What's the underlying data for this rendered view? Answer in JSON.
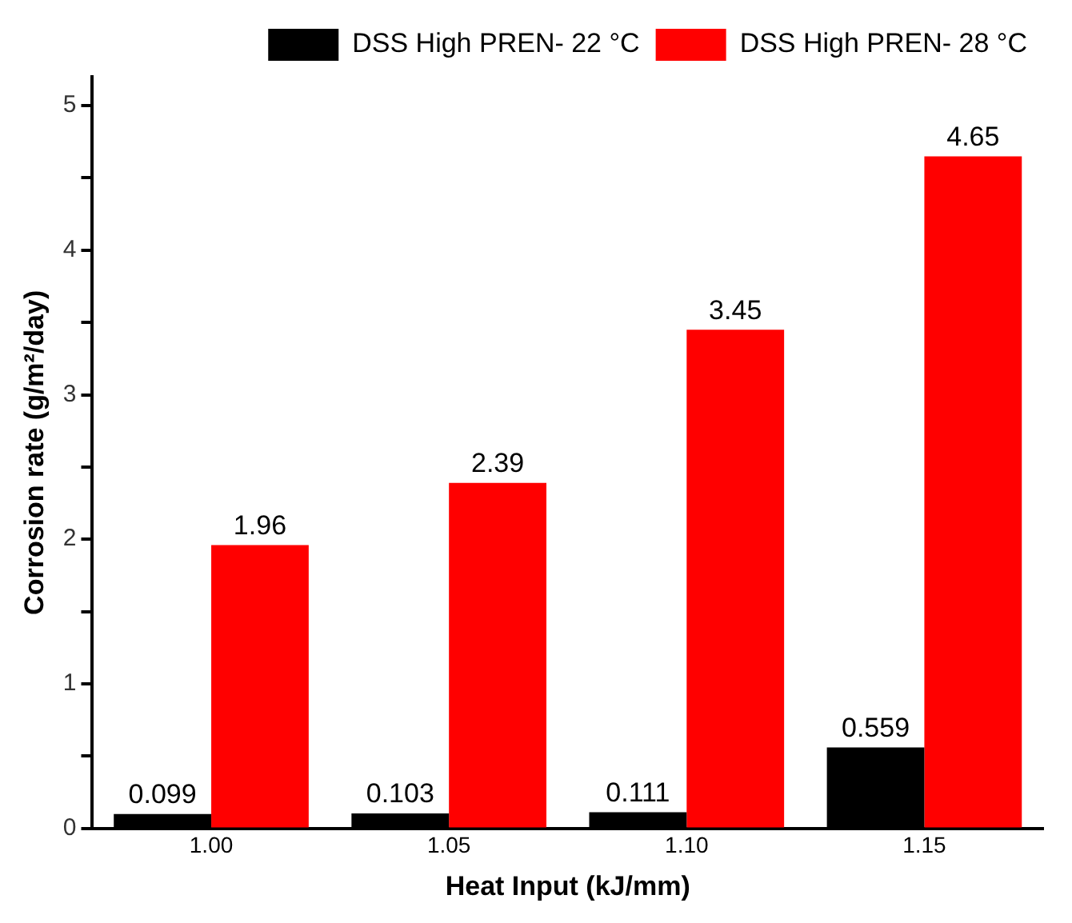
{
  "chart_data": {
    "type": "bar",
    "xlabel": "Heat Input (kJ/mm)",
    "ylabel": "Corrosion rate (g/m²/day)",
    "categories": [
      "1.00",
      "1.05",
      "1.10",
      "1.15"
    ],
    "series": [
      {
        "name": "DSS High PREN- 22 °C",
        "color": "#000000",
        "values": [
          0.099,
          0.103,
          0.111,
          0.559
        ]
      },
      {
        "name": "DSS High PREN- 28 °C",
        "color": "#ff0000",
        "values": [
          1.96,
          2.39,
          3.45,
          4.65
        ]
      }
    ],
    "ylim": [
      0,
      5.2
    ],
    "yticks": [
      0,
      {
        "value": 0.5,
        "label": null
      },
      1,
      {
        "value": 1.5,
        "label": null
      },
      2,
      {
        "value": 2.5,
        "label": null
      },
      3,
      {
        "value": 3.5,
        "label": null
      },
      4,
      {
        "value": 4.5,
        "label": null
      },
      5
    ],
    "data_labels": true,
    "grid": false,
    "legend": "top right"
  }
}
